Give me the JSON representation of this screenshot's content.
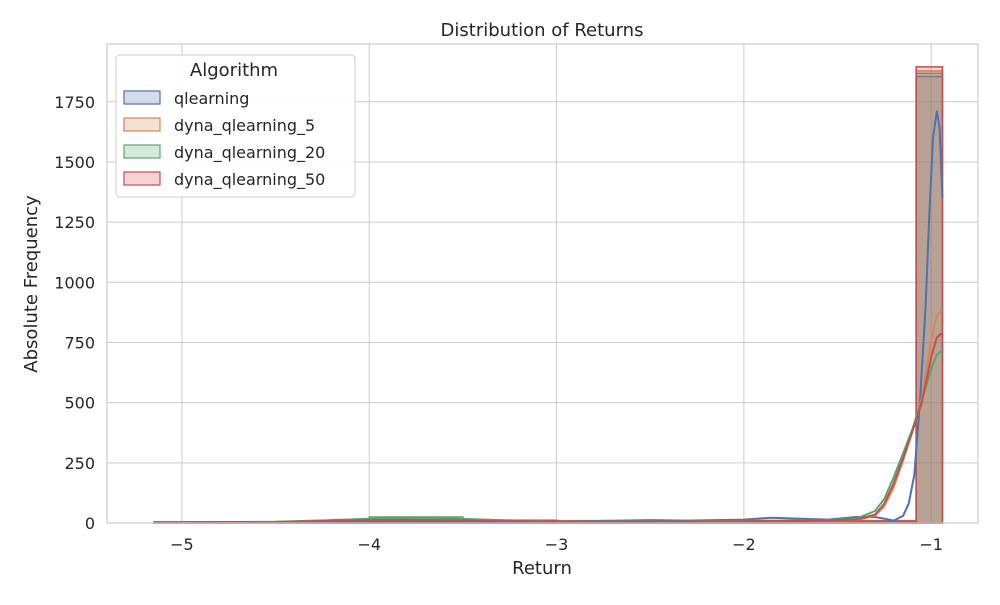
{
  "chart_data": {
    "type": "histogram",
    "title": "Distribution of Returns",
    "xlabel": "Return",
    "ylabel": "Absolute Frequency",
    "xlim": [
      -5.4,
      -0.75
    ],
    "ylim": [
      0,
      1990
    ],
    "xticks": [
      -5,
      -4,
      -3,
      -2,
      -1
    ],
    "xtick_labels": [
      "−5",
      "−4",
      "−3",
      "−2",
      "−1"
    ],
    "yticks": [
      0,
      250,
      500,
      750,
      1000,
      1250,
      1500,
      1750
    ],
    "ytick_labels": [
      "0",
      "250",
      "500",
      "750",
      "1000",
      "1250",
      "1500",
      "1750"
    ],
    "grid": true,
    "legend": {
      "title": "Algorithm",
      "placement": "top-left",
      "entries": [
        "qlearning",
        "dyna_qlearning_5",
        "dyna_qlearning_20",
        "dyna_qlearning_50"
      ]
    },
    "series": [
      {
        "name": "qlearning",
        "color": "#4c72b0",
        "bins": [
          {
            "x0": -5.15,
            "x1": -1.08,
            "count": 3
          },
          {
            "x0": -1.08,
            "x1": -0.94,
            "count": 1855
          }
        ],
        "kde": [
          [
            -5.15,
            3
          ],
          [
            -4.5,
            3
          ],
          [
            -4.0,
            4
          ],
          [
            -3.5,
            4
          ],
          [
            -3.0,
            6
          ],
          [
            -2.5,
            12
          ],
          [
            -2.3,
            10
          ],
          [
            -2.0,
            14
          ],
          [
            -1.85,
            22
          ],
          [
            -1.7,
            18
          ],
          [
            -1.55,
            14
          ],
          [
            -1.4,
            25
          ],
          [
            -1.3,
            25
          ],
          [
            -1.25,
            18
          ],
          [
            -1.2,
            10
          ],
          [
            -1.15,
            30
          ],
          [
            -1.12,
            80
          ],
          [
            -1.09,
            200
          ],
          [
            -1.06,
            500
          ],
          [
            -1.03,
            900
          ],
          [
            -1.01,
            1280
          ],
          [
            -0.99,
            1600
          ],
          [
            -0.97,
            1710
          ],
          [
            -0.955,
            1640
          ],
          [
            -0.94,
            1350
          ]
        ]
      },
      {
        "name": "dyna_qlearning_5",
        "color": "#dd8452",
        "bins": [
          {
            "x0": -5.15,
            "x1": -4.0,
            "count": 3
          },
          {
            "x0": -4.0,
            "x1": -3.0,
            "count": 12
          },
          {
            "x0": -3.0,
            "x1": -1.08,
            "count": 10
          },
          {
            "x0": -1.08,
            "x1": -0.94,
            "count": 1878
          }
        ],
        "kde": [
          [
            -5.15,
            3
          ],
          [
            -4.5,
            4
          ],
          [
            -4.0,
            15
          ],
          [
            -3.8,
            16
          ],
          [
            -3.5,
            13
          ],
          [
            -3.0,
            6
          ],
          [
            -2.5,
            5
          ],
          [
            -2.0,
            8
          ],
          [
            -1.6,
            10
          ],
          [
            -1.4,
            12
          ],
          [
            -1.3,
            30
          ],
          [
            -1.25,
            70
          ],
          [
            -1.2,
            150
          ],
          [
            -1.15,
            260
          ],
          [
            -1.1,
            380
          ],
          [
            -1.05,
            520
          ],
          [
            -1.0,
            760
          ],
          [
            -0.97,
            860
          ],
          [
            -0.95,
            880
          ],
          [
            -0.94,
            878
          ]
        ]
      },
      {
        "name": "dyna_qlearning_20",
        "color": "#55a868",
        "bins": [
          {
            "x0": -4.2,
            "x1": -4.0,
            "count": 14
          },
          {
            "x0": -4.0,
            "x1": -3.5,
            "count": 25
          },
          {
            "x0": -3.5,
            "x1": -3.0,
            "count": 10
          },
          {
            "x0": -3.0,
            "x1": -1.08,
            "count": 8
          },
          {
            "x0": -1.08,
            "x1": -0.94,
            "count": 1868
          }
        ],
        "kde": [
          [
            -5.15,
            3
          ],
          [
            -4.5,
            5
          ],
          [
            -4.2,
            12
          ],
          [
            -4.0,
            18
          ],
          [
            -3.8,
            22
          ],
          [
            -3.6,
            20
          ],
          [
            -3.3,
            12
          ],
          [
            -3.0,
            6
          ],
          [
            -2.5,
            6
          ],
          [
            -2.0,
            9
          ],
          [
            -1.6,
            10
          ],
          [
            -1.4,
            18
          ],
          [
            -1.3,
            50
          ],
          [
            -1.25,
            100
          ],
          [
            -1.2,
            190
          ],
          [
            -1.15,
            290
          ],
          [
            -1.1,
            390
          ],
          [
            -1.05,
            510
          ],
          [
            -1.0,
            640
          ],
          [
            -0.97,
            700
          ],
          [
            -0.95,
            712
          ],
          [
            -0.94,
            710
          ]
        ]
      },
      {
        "name": "dyna_qlearning_50",
        "color": "#c44e52",
        "bins": [
          {
            "x0": -5.15,
            "x1": -4.0,
            "count": 3
          },
          {
            "x0": -4.0,
            "x1": -3.0,
            "count": 10
          },
          {
            "x0": -3.0,
            "x1": -1.08,
            "count": 8
          },
          {
            "x0": -1.08,
            "x1": -0.94,
            "count": 1895
          }
        ],
        "kde": [
          [
            -5.15,
            3
          ],
          [
            -4.5,
            4
          ],
          [
            -4.0,
            12
          ],
          [
            -3.8,
            13
          ],
          [
            -3.5,
            11
          ],
          [
            -3.0,
            6
          ],
          [
            -2.5,
            5
          ],
          [
            -2.0,
            7
          ],
          [
            -1.6,
            10
          ],
          [
            -1.4,
            14
          ],
          [
            -1.3,
            35
          ],
          [
            -1.25,
            80
          ],
          [
            -1.2,
            165
          ],
          [
            -1.15,
            270
          ],
          [
            -1.1,
            380
          ],
          [
            -1.05,
            500
          ],
          [
            -1.0,
            690
          ],
          [
            -0.97,
            770
          ],
          [
            -0.95,
            785
          ],
          [
            -0.94,
            782
          ]
        ]
      }
    ]
  }
}
